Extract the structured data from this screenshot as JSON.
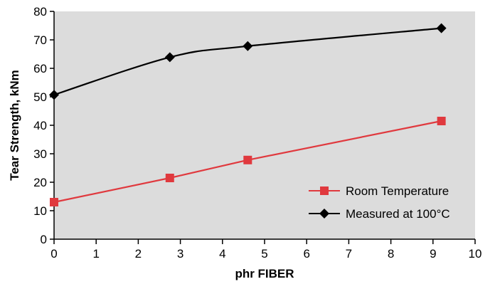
{
  "chart_data": {
    "type": "line",
    "title": "",
    "xlabel": "phr FIBER",
    "ylabel": "Tear Strength, kNm",
    "xlim": [
      0,
      10
    ],
    "ylim": [
      0,
      80
    ],
    "x_ticks": [
      "0",
      "1",
      "2",
      "3",
      "4",
      "5",
      "6",
      "7",
      "8",
      "9",
      "10"
    ],
    "y_ticks": [
      "0",
      "10",
      "20",
      "30",
      "40",
      "50",
      "60",
      "70",
      "80"
    ],
    "grid": false,
    "plot_background": "#dcdcdc",
    "legend_position": "lower-right",
    "series": [
      {
        "name": "Room Temperature",
        "color": "#e0393e",
        "marker": "square",
        "smooth": false,
        "x": [
          0,
          2.75,
          4.6,
          9.2
        ],
        "y": [
          13,
          21.5,
          27.8,
          41.5
        ]
      },
      {
        "name": "Measured at 100°C",
        "color": "#000000",
        "marker": "diamond",
        "smooth": true,
        "x": [
          0,
          2.75,
          4.6,
          9.2
        ],
        "y": [
          50.7,
          63.9,
          67.8,
          74.1
        ]
      }
    ]
  }
}
